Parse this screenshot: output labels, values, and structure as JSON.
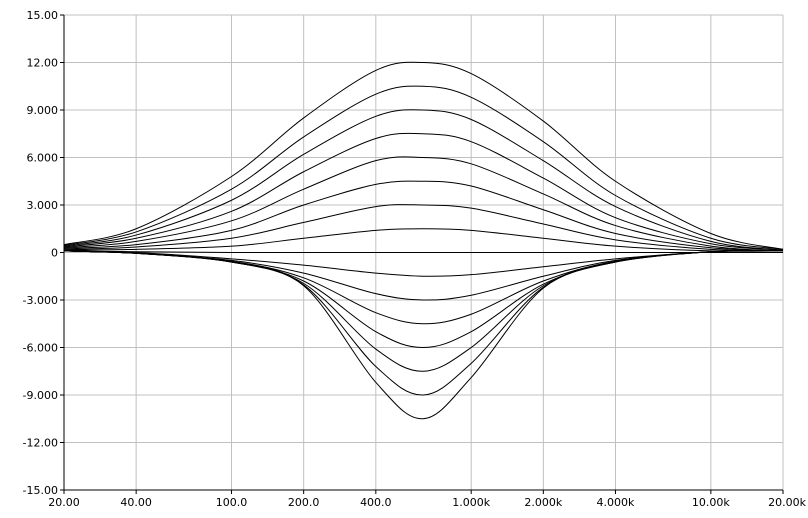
{
  "chart_data": {
    "type": "line",
    "title": "",
    "xlabel": "",
    "ylabel": "",
    "x_scale": "log",
    "xlim": [
      20,
      20000
    ],
    "ylim": [
      -15,
      15
    ],
    "grid": true,
    "x_ticks": [
      {
        "value": 20,
        "label": "20.00"
      },
      {
        "value": 40,
        "label": "40.00"
      },
      {
        "value": 100,
        "label": "100.0"
      },
      {
        "value": 200,
        "label": "200.0"
      },
      {
        "value": 400,
        "label": "400.0"
      },
      {
        "value": 1000,
        "label": "1.000k"
      },
      {
        "value": 2000,
        "label": "2.000k"
      },
      {
        "value": 4000,
        "label": "4.000k"
      },
      {
        "value": 10000,
        "label": "10.00k"
      },
      {
        "value": 20000,
        "label": "20.00k"
      }
    ],
    "y_ticks": [
      {
        "value": 15,
        "label": "15.00"
      },
      {
        "value": 12,
        "label": "12.00"
      },
      {
        "value": 9,
        "label": "9.000"
      },
      {
        "value": 6,
        "label": "6.000"
      },
      {
        "value": 3,
        "label": "3.000"
      },
      {
        "value": 0,
        "label": "0"
      },
      {
        "value": -3,
        "label": "-3.000"
      },
      {
        "value": -6,
        "label": "-6.000"
      },
      {
        "value": -9,
        "label": "-9.000"
      },
      {
        "value": -12,
        "label": "-12.00"
      },
      {
        "value": -15,
        "label": "-15.00"
      }
    ],
    "x": [
      20,
      40,
      100,
      200,
      400,
      630,
      1000,
      2000,
      4000,
      10000,
      20000
    ],
    "series": [
      {
        "peak": 12.0,
        "values": [
          0.5,
          1.5,
          4.8,
          8.5,
          11.5,
          12.0,
          11.3,
          8.3,
          4.5,
          1.2,
          0.2
        ]
      },
      {
        "peak": 10.5,
        "values": [
          0.45,
          1.3,
          4.0,
          7.3,
          10.0,
          10.5,
          9.8,
          7.0,
          3.6,
          0.9,
          0.2
        ]
      },
      {
        "peak": 9.0,
        "values": [
          0.4,
          1.1,
          3.3,
          6.2,
          8.6,
          9.0,
          8.4,
          5.8,
          2.9,
          0.7,
          0.15
        ]
      },
      {
        "peak": 7.5,
        "values": [
          0.35,
          0.9,
          2.6,
          5.1,
          7.2,
          7.5,
          7.0,
          4.7,
          2.2,
          0.55,
          0.15
        ]
      },
      {
        "peak": 6.0,
        "values": [
          0.3,
          0.7,
          2.0,
          4.0,
          5.8,
          6.0,
          5.6,
          3.7,
          1.7,
          0.4,
          0.1
        ]
      },
      {
        "peak": 4.5,
        "values": [
          0.25,
          0.5,
          1.4,
          3.0,
          4.3,
          4.5,
          4.2,
          2.7,
          1.2,
          0.3,
          0.1
        ]
      },
      {
        "peak": 3.0,
        "values": [
          0.2,
          0.35,
          0.9,
          1.9,
          2.9,
          3.0,
          2.8,
          1.8,
          0.8,
          0.2,
          0.1
        ]
      },
      {
        "peak": 1.5,
        "values": [
          0.15,
          0.2,
          0.4,
          0.9,
          1.4,
          1.5,
          1.4,
          0.9,
          0.4,
          0.1,
          0.1
        ]
      },
      {
        "peak": 0.0,
        "values": [
          0.1,
          0.05,
          0,
          0,
          0,
          0,
          0,
          0,
          0,
          0,
          0
        ]
      },
      {
        "peak": -1.5,
        "values": [
          0.1,
          0.0,
          -0.4,
          -0.8,
          -1.3,
          -1.5,
          -1.4,
          -0.9,
          -0.4,
          0.05,
          0.1
        ]
      },
      {
        "peak": -3.0,
        "values": [
          0.1,
          -0.05,
          -0.5,
          -1.3,
          -2.6,
          -3.0,
          -2.7,
          -1.5,
          -0.5,
          0.05,
          0.1
        ]
      },
      {
        "peak": -4.5,
        "values": [
          0.1,
          -0.05,
          -0.55,
          -1.6,
          -3.8,
          -4.5,
          -3.9,
          -1.8,
          -0.55,
          0.05,
          0.1
        ]
      },
      {
        "peak": -6.0,
        "values": [
          0.1,
          -0.05,
          -0.6,
          -1.8,
          -5.0,
          -6.0,
          -5.0,
          -2.0,
          -0.55,
          0.05,
          0.1
        ]
      },
      {
        "peak": -7.5,
        "values": [
          0.1,
          -0.05,
          -0.6,
          -1.95,
          -6.1,
          -7.5,
          -6.0,
          -2.1,
          -0.6,
          0.05,
          0.1
        ]
      },
      {
        "peak": -9.0,
        "values": [
          0.1,
          -0.05,
          -0.6,
          -2.05,
          -7.2,
          -9.0,
          -7.0,
          -2.2,
          -0.6,
          0.05,
          0.1
        ]
      },
      {
        "peak": -10.5,
        "values": [
          0.1,
          -0.05,
          -0.6,
          -2.1,
          -8.2,
          -10.5,
          -7.9,
          -2.25,
          -0.6,
          0.05,
          0.1
        ]
      }
    ],
    "colors": {
      "line": "#000000",
      "grid": "#c0c0c0",
      "axis": "#000000",
      "background": "#ffffff"
    }
  }
}
